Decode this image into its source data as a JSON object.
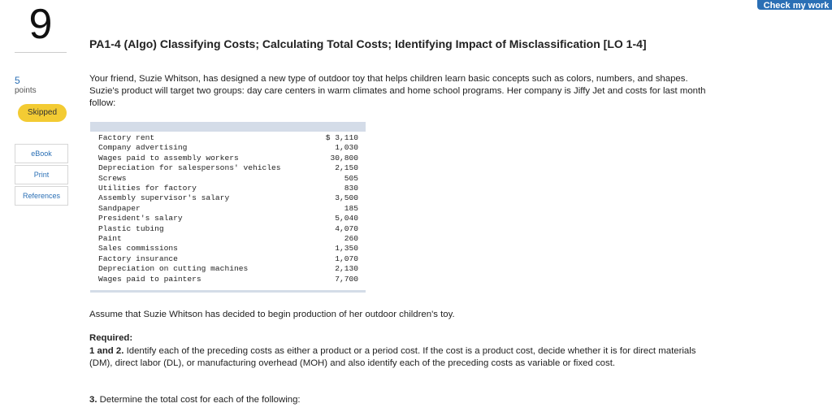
{
  "header": {
    "check_button": "Check my work"
  },
  "question": {
    "number": "9",
    "points_value": "5",
    "points_label": "points",
    "status_badge": "Skipped"
  },
  "side_links": [
    "eBook",
    "Print",
    "References"
  ],
  "title": "PA1-4 (Algo) Classifying Costs; Calculating Total Costs; Identifying Impact of Misclassification [LO 1-4]",
  "intro": "Your friend, Suzie Whitson, has designed a new type of outdoor toy that helps children learn basic concepts such as colors, numbers, and shapes. Suzie's product will target two groups: day care centers in warm climates and home school programs. Her company is Jiffy Jet and costs for last month follow:",
  "costs": [
    {
      "item": "Factory rent",
      "amount": "$ 3,110"
    },
    {
      "item": "Company advertising",
      "amount": "1,030"
    },
    {
      "item": "Wages paid to assembly workers",
      "amount": "30,800"
    },
    {
      "item": "Depreciation for salespersons' vehicles",
      "amount": "2,150"
    },
    {
      "item": "Screws",
      "amount": "505"
    },
    {
      "item": "Utilities for factory",
      "amount": "830"
    },
    {
      "item": "Assembly supervisor's salary",
      "amount": "3,500"
    },
    {
      "item": "Sandpaper",
      "amount": "185"
    },
    {
      "item": "President's salary",
      "amount": "5,040"
    },
    {
      "item": "Plastic tubing",
      "amount": "4,070"
    },
    {
      "item": "Paint",
      "amount": "260"
    },
    {
      "item": "Sales commissions",
      "amount": "1,350"
    },
    {
      "item": "Factory insurance",
      "amount": "1,070"
    },
    {
      "item": "Depreciation on cutting machines",
      "amount": "2,130"
    },
    {
      "item": "Wages paid to painters",
      "amount": "7,700"
    }
  ],
  "assumption": "Assume that Suzie Whitson has decided to begin production of her outdoor children's toy.",
  "required_heading": "Required:",
  "req12_label": "1 and 2.",
  "req12_text": "Identify each of the preceding costs as either a product or a period cost. If the cost is a product cost, decide whether it is for direct materials (DM), direct labor (DL), or manufacturing overhead (MOH) and also identify each of the preceding costs as variable or fixed cost.",
  "req3_label": "3.",
  "req3_text": "Determine the total cost for each of the following:"
}
